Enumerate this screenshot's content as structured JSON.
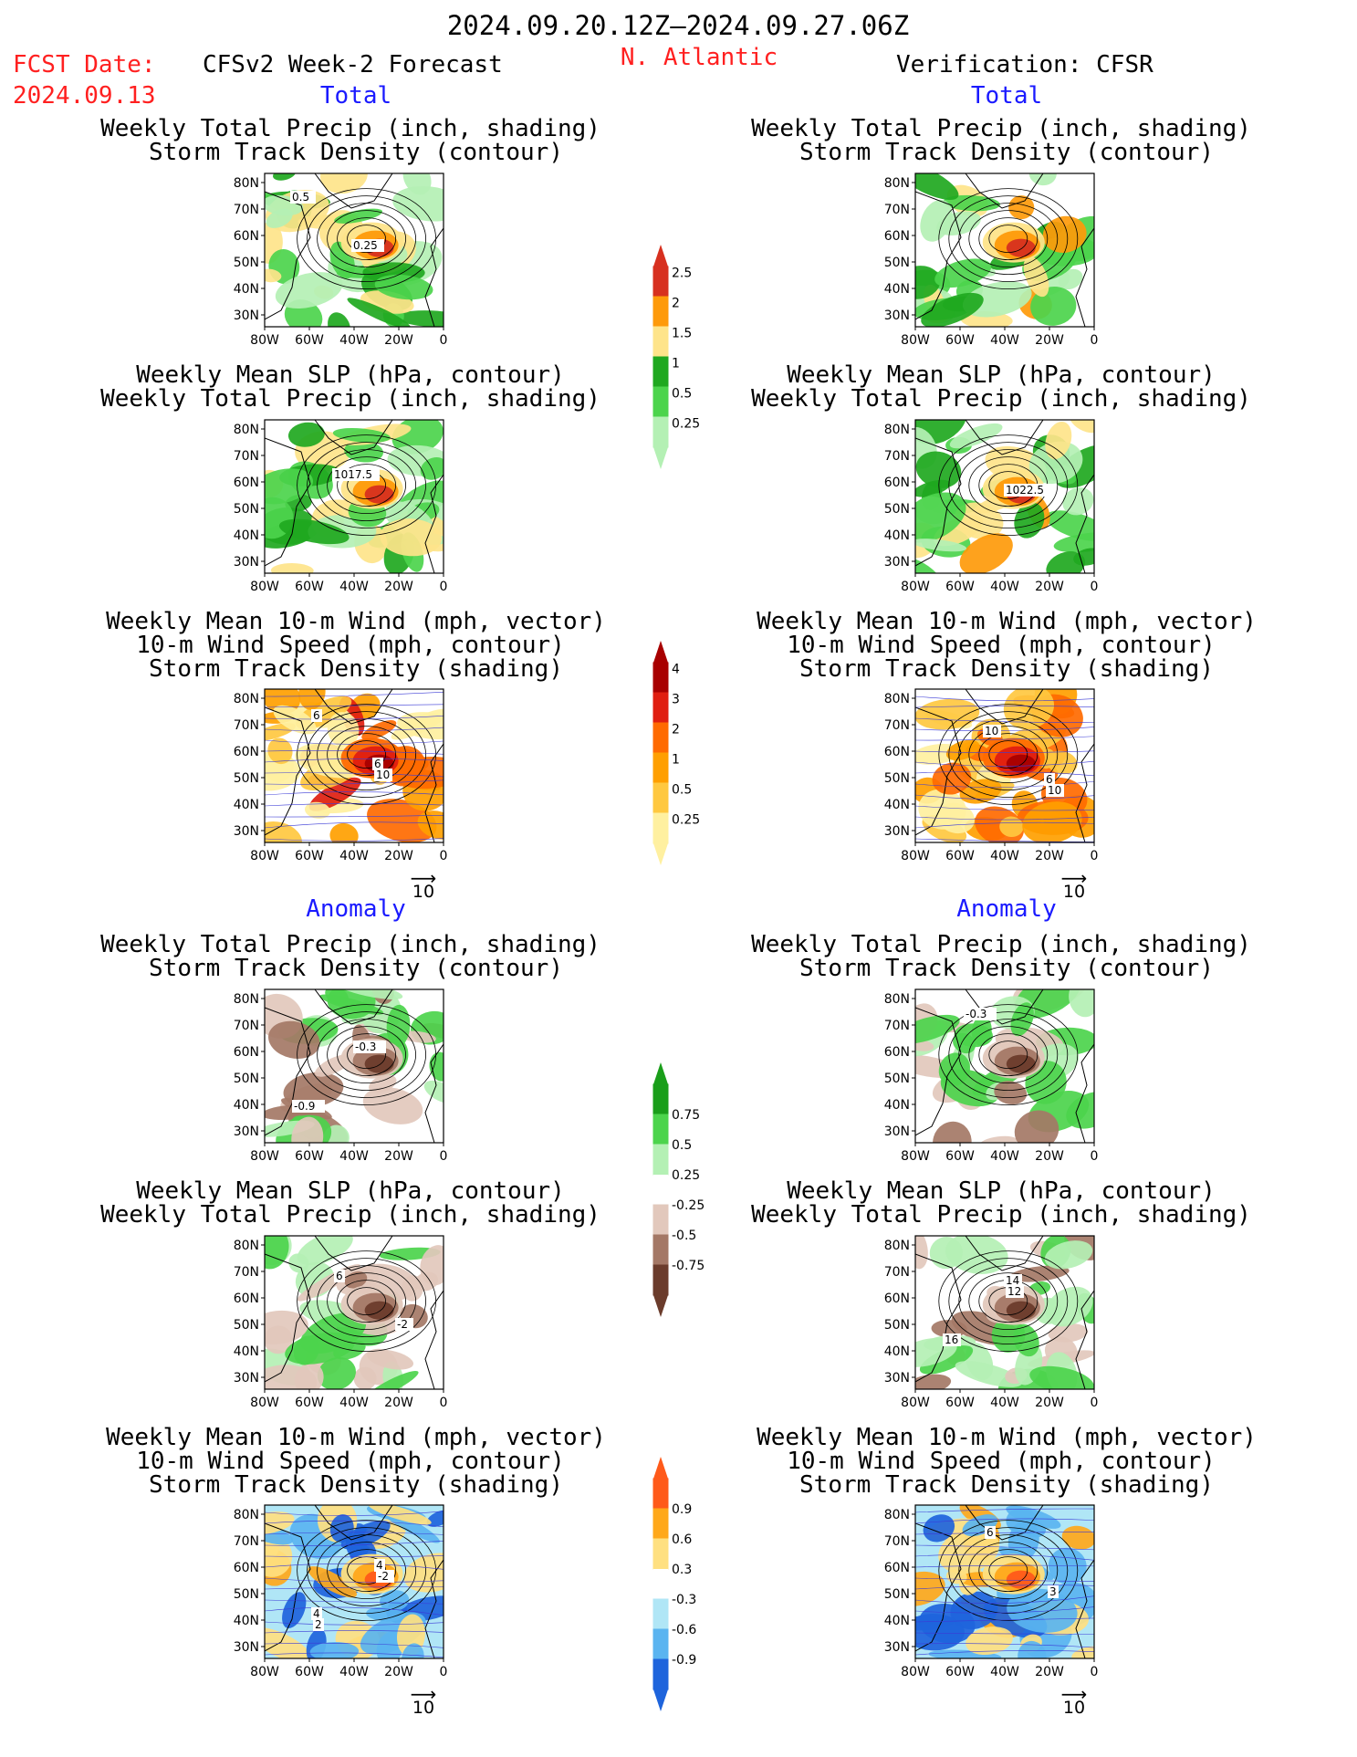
{
  "header": {
    "date_range": "2024.09.20.12Z–2024.09.27.06Z",
    "fcst_label": "FCST Date:",
    "fcst_date": "2024.09.13",
    "left_title": "CFSv2 Week-2 Forecast",
    "region": "N. Atlantic",
    "right_title": "Verification: CFSR"
  },
  "sections": {
    "total": "Total",
    "anomaly": "Anomaly"
  },
  "panel_titles": {
    "precip_storm": [
      "Weekly Total Precip (inch, shading)",
      "Storm Track Density (contour)"
    ],
    "slp_precip": [
      "Weekly Mean SLP (hPa, contour)",
      "Weekly Total Precip (inch, shading)"
    ],
    "wind_storm": [
      "Weekly Mean 10-m Wind (mph, vector)",
      "10-m Wind Speed (mph, contour)",
      "Storm Track Density (shading)"
    ]
  },
  "axes": {
    "lat_ticks": [
      "80N",
      "70N",
      "60N",
      "50N",
      "40N",
      "30N"
    ],
    "lon_ticks": [
      "80W",
      "60W",
      "40W",
      "20W",
      "0"
    ]
  },
  "vector_ref": "10",
  "colorbars": [
    {
      "name": "precip-total",
      "labels": [
        "2.5",
        "2",
        "1.5",
        "1",
        "0.5",
        "0.25"
      ],
      "colors": [
        "#d7301f",
        "#fe9a0a",
        "#fee48a",
        "#1fa81f",
        "#4cd44c",
        "#b4f0b4"
      ]
    },
    {
      "name": "storm-total",
      "labels": [
        "4",
        "3",
        "2",
        "1",
        "0.5",
        "0.25"
      ],
      "colors": [
        "#a80000",
        "#e01e10",
        "#ff6a00",
        "#ff9f00",
        "#ffc840",
        "#fff0a0"
      ]
    },
    {
      "name": "precip-anom",
      "labels": [
        "0.75",
        "0.5",
        "0.25",
        "-0.25",
        "-0.5",
        "-0.75"
      ],
      "colors": [
        "#1a9e1a",
        "#4cd44c",
        "#b4f0b4",
        "#ffffff",
        "#e2c8bc",
        "#a47866",
        "#6b3c2c"
      ]
    },
    {
      "name": "storm-anom",
      "labels": [
        "0.9",
        "0.6",
        "0.3",
        "-0.3",
        "-0.6",
        "-0.9"
      ],
      "colors": [
        "#ff5a1a",
        "#ffa81a",
        "#ffe080",
        "#ffffff",
        "#b0e6f6",
        "#5ab4f0",
        "#1e64dc"
      ]
    }
  ],
  "panels": [
    {
      "id": "fc-total-precip",
      "labels": [
        "0.5",
        "0.25"
      ]
    },
    {
      "id": "vf-total-precip",
      "labels": []
    },
    {
      "id": "fc-total-slp",
      "labels": [
        "1017.5"
      ]
    },
    {
      "id": "vf-total-slp",
      "labels": [
        "1022.5"
      ]
    },
    {
      "id": "fc-total-wind",
      "labels": [
        "10",
        "6",
        "6"
      ]
    },
    {
      "id": "vf-total-wind",
      "labels": [
        "10",
        "10",
        "6"
      ]
    },
    {
      "id": "fc-anom-precip",
      "labels": [
        "-0.9",
        "-0.3"
      ]
    },
    {
      "id": "vf-anom-precip",
      "labels": [
        "-0.3"
      ]
    },
    {
      "id": "fc-anom-slp",
      "labels": [
        "6",
        "-2"
      ]
    },
    {
      "id": "vf-anom-slp",
      "labels": [
        "12",
        "16",
        "14"
      ]
    },
    {
      "id": "fc-anom-wind",
      "labels": [
        "-2",
        "2",
        "4",
        "4"
      ]
    },
    {
      "id": "vf-anom-wind",
      "labels": [
        "3",
        "6"
      ]
    }
  ]
}
